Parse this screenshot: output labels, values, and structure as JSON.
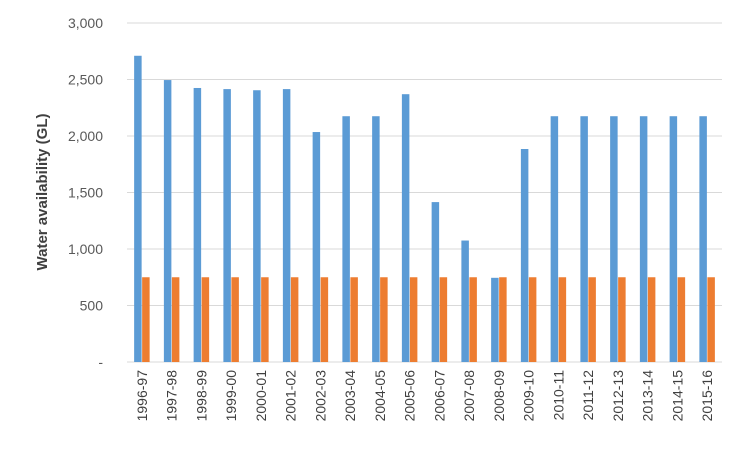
{
  "chart_data": {
    "type": "bar",
    "title": "",
    "xlabel": "",
    "ylabel": "Water availability (GL)",
    "ylim": [
      0,
      3000
    ],
    "grid": true,
    "legend": "none",
    "y_ticks": [
      {
        "value": 0,
        "label": "-"
      },
      {
        "value": 500,
        "label": "500"
      },
      {
        "value": 1000,
        "label": "1,000"
      },
      {
        "value": 1500,
        "label": "1,500"
      },
      {
        "value": 2000,
        "label": "2,000"
      },
      {
        "value": 2500,
        "label": "2,500"
      },
      {
        "value": 3000,
        "label": "3,000"
      }
    ],
    "categories": [
      "1996-97",
      "1997-98",
      "1998-99",
      "1999-00",
      "2000-01",
      "2001-02",
      "2002-03",
      "2003-04",
      "2004-05",
      "2005-06",
      "2006-07",
      "2007-08",
      "2008-09",
      "2009-10",
      "2010-11",
      "2011-12",
      "2012-13",
      "2013-14",
      "2014-15",
      "2015-16"
    ],
    "series": [
      {
        "color": "#5b9bd5",
        "values": [
          2710,
          2495,
          2425,
          2415,
          2405,
          2415,
          2035,
          2175,
          2175,
          2370,
          1415,
          1075,
          745,
          1885,
          2175,
          2175,
          2175,
          2175,
          2175,
          2175
        ]
      },
      {
        "color": "#ed7d31",
        "values": [
          750,
          750,
          750,
          750,
          750,
          750,
          750,
          750,
          750,
          750,
          750,
          750,
          750,
          750,
          750,
          750,
          750,
          750,
          750,
          750
        ]
      }
    ]
  }
}
